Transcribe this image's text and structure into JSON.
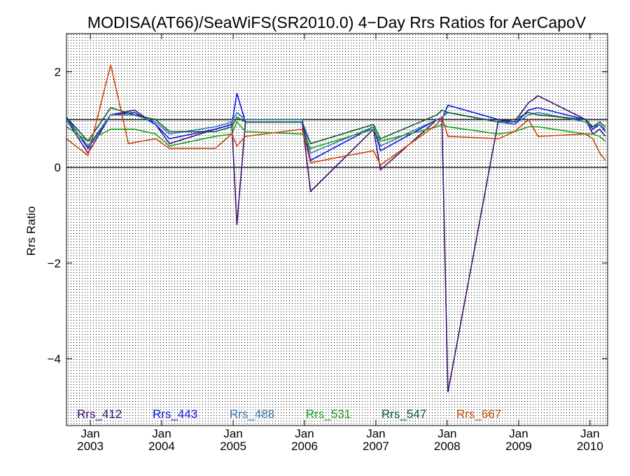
{
  "chart_data": {
    "type": "line",
    "title": "MODISA(AT66)/SeaWiFS(SR2010.0) 4−Day Rrs Ratios for AerCapoV",
    "xlabel": "",
    "ylabel": "Rrs Ratio",
    "x_axis": {
      "kind": "date",
      "range": [
        "2002-09-01",
        "2010-04-01"
      ],
      "ticks": [
        {
          "date": "2003-01-01",
          "line1": "Jan",
          "line2": "2003"
        },
        {
          "date": "2004-01-01",
          "line1": "Jan",
          "line2": "2004"
        },
        {
          "date": "2005-01-01",
          "line1": "Jan",
          "line2": "2005"
        },
        {
          "date": "2006-01-01",
          "line1": "Jan",
          "line2": "2006"
        },
        {
          "date": "2007-01-01",
          "line1": "Jan",
          "line2": "2007"
        },
        {
          "date": "2008-01-01",
          "line1": "Jan",
          "line2": "2008"
        },
        {
          "date": "2009-01-01",
          "line1": "Jan",
          "line2": "2009"
        },
        {
          "date": "2010-01-01",
          "line1": "Jan",
          "line2": "2010"
        }
      ]
    },
    "y_axis": {
      "range": [
        -5.4,
        2.8
      ],
      "ticks": [
        {
          "value": 2,
          "label": "2"
        },
        {
          "value": 0,
          "label": "0"
        },
        {
          "value": -2,
          "label": "−2"
        },
        {
          "value": -4,
          "label": "−4"
        }
      ]
    },
    "reference_lines": [
      0,
      1
    ],
    "grid": "dotted",
    "legend_placement": "bottom inside plot",
    "series": [
      {
        "name": "Rrs_412",
        "color": "#3c0d70",
        "points": [
          [
            "2002-09-01",
            1.0
          ],
          [
            "2002-12-20",
            0.3
          ],
          [
            "2003-04-15",
            1.1
          ],
          [
            "2003-08-15",
            1.2
          ],
          [
            "2003-12-01",
            0.9
          ],
          [
            "2004-02-10",
            0.5
          ],
          [
            "2004-10-01",
            0.8
          ],
          [
            "2004-12-25",
            0.9
          ],
          [
            "2005-01-20",
            -1.2
          ],
          [
            "2005-03-05",
            0.95
          ],
          [
            "2005-12-20",
            0.95
          ],
          [
            "2006-02-01",
            -0.5
          ],
          [
            "2006-12-20",
            0.8
          ],
          [
            "2007-01-25",
            -0.05
          ],
          [
            "2007-11-10",
            1.0
          ],
          [
            "2007-12-05",
            1.0
          ],
          [
            "2008-01-05",
            -4.7
          ],
          [
            "2008-09-20",
            1.0
          ],
          [
            "2008-12-10",
            0.95
          ],
          [
            "2009-02-20",
            1.35
          ],
          [
            "2009-04-10",
            1.5
          ],
          [
            "2009-12-10",
            1.0
          ],
          [
            "2010-01-15",
            0.7
          ],
          [
            "2010-02-20",
            0.8
          ],
          [
            "2010-03-20",
            0.65
          ]
        ]
      },
      {
        "name": "Rrs_443",
        "color": "#0a14e6",
        "points": [
          [
            "2002-09-01",
            1.05
          ],
          [
            "2002-12-20",
            0.4
          ],
          [
            "2003-04-15",
            1.1
          ],
          [
            "2003-08-15",
            1.15
          ],
          [
            "2003-12-01",
            0.9
          ],
          [
            "2004-02-10",
            0.6
          ],
          [
            "2004-10-01",
            0.8
          ],
          [
            "2004-12-25",
            0.9
          ],
          [
            "2005-01-20",
            1.55
          ],
          [
            "2005-03-05",
            0.95
          ],
          [
            "2005-12-20",
            0.95
          ],
          [
            "2006-02-01",
            0.15
          ],
          [
            "2006-12-20",
            0.85
          ],
          [
            "2007-01-25",
            0.35
          ],
          [
            "2007-11-10",
            1.0
          ],
          [
            "2007-12-05",
            1.0
          ],
          [
            "2008-01-05",
            1.3
          ],
          [
            "2008-09-20",
            1.0
          ],
          [
            "2008-12-10",
            0.9
          ],
          [
            "2009-02-20",
            1.2
          ],
          [
            "2009-04-10",
            1.25
          ],
          [
            "2009-12-10",
            1.0
          ],
          [
            "2010-01-15",
            0.8
          ],
          [
            "2010-02-20",
            0.9
          ],
          [
            "2010-03-20",
            0.75
          ]
        ]
      },
      {
        "name": "Rrs_488",
        "color": "#3a7ab0",
        "points": [
          [
            "2002-09-01",
            1.0
          ],
          [
            "2002-12-20",
            0.45
          ],
          [
            "2003-04-15",
            1.1
          ],
          [
            "2003-08-15",
            1.1
          ],
          [
            "2003-12-01",
            0.95
          ],
          [
            "2004-02-10",
            0.7
          ],
          [
            "2004-10-01",
            0.85
          ],
          [
            "2004-12-25",
            0.95
          ],
          [
            "2005-01-20",
            1.15
          ],
          [
            "2005-03-05",
            1.0
          ],
          [
            "2005-12-20",
            1.0
          ],
          [
            "2006-02-01",
            0.3
          ],
          [
            "2006-12-20",
            0.85
          ],
          [
            "2007-01-25",
            0.45
          ],
          [
            "2007-11-10",
            1.0
          ],
          [
            "2007-12-05",
            1.05
          ],
          [
            "2008-01-05",
            1.15
          ],
          [
            "2008-09-20",
            0.95
          ],
          [
            "2008-12-10",
            0.9
          ],
          [
            "2009-02-20",
            1.1
          ],
          [
            "2009-04-10",
            1.15
          ],
          [
            "2009-12-10",
            0.95
          ],
          [
            "2010-01-15",
            0.85
          ],
          [
            "2010-02-20",
            0.9
          ],
          [
            "2010-03-20",
            0.8
          ]
        ]
      },
      {
        "name": "Rrs_531",
        "color": "#1aa01a",
        "points": [
          [
            "2002-09-01",
            0.85
          ],
          [
            "2002-12-20",
            0.55
          ],
          [
            "2003-04-15",
            0.8
          ],
          [
            "2003-08-15",
            0.8
          ],
          [
            "2003-12-01",
            0.7
          ],
          [
            "2004-02-10",
            0.45
          ],
          [
            "2004-10-01",
            0.65
          ],
          [
            "2004-12-25",
            0.7
          ],
          [
            "2005-01-20",
            0.95
          ],
          [
            "2005-03-05",
            0.75
          ],
          [
            "2005-12-20",
            0.7
          ],
          [
            "2006-02-01",
            0.4
          ],
          [
            "2006-12-20",
            0.8
          ],
          [
            "2007-01-25",
            0.55
          ],
          [
            "2007-11-10",
            0.85
          ],
          [
            "2007-12-05",
            0.9
          ],
          [
            "2008-01-05",
            0.85
          ],
          [
            "2008-09-20",
            0.7
          ],
          [
            "2008-12-10",
            0.75
          ],
          [
            "2009-02-20",
            0.85
          ],
          [
            "2009-04-10",
            0.85
          ],
          [
            "2009-12-10",
            0.7
          ],
          [
            "2010-01-15",
            0.7
          ],
          [
            "2010-02-20",
            0.65
          ],
          [
            "2010-03-20",
            0.55
          ]
        ]
      },
      {
        "name": "Rrs_547",
        "color": "#0c5a2e",
        "points": [
          [
            "2002-09-01",
            1.05
          ],
          [
            "2002-12-20",
            0.55
          ],
          [
            "2003-04-15",
            1.25
          ],
          [
            "2003-08-15",
            1.1
          ],
          [
            "2003-12-01",
            1.0
          ],
          [
            "2004-02-10",
            0.75
          ],
          [
            "2004-10-01",
            0.75
          ],
          [
            "2004-12-25",
            0.85
          ],
          [
            "2005-01-20",
            1.05
          ],
          [
            "2005-03-05",
            0.95
          ],
          [
            "2005-12-20",
            0.95
          ],
          [
            "2006-02-01",
            0.5
          ],
          [
            "2006-12-20",
            0.9
          ],
          [
            "2007-01-25",
            0.6
          ],
          [
            "2007-11-10",
            1.1
          ],
          [
            "2007-12-05",
            1.2
          ],
          [
            "2008-01-05",
            1.15
          ],
          [
            "2008-09-20",
            0.95
          ],
          [
            "2008-12-10",
            1.0
          ],
          [
            "2009-02-20",
            1.15
          ],
          [
            "2009-04-10",
            1.1
          ],
          [
            "2009-12-10",
            1.0
          ],
          [
            "2010-01-15",
            0.85
          ],
          [
            "2010-02-20",
            0.95
          ],
          [
            "2010-03-20",
            0.85
          ]
        ]
      },
      {
        "name": "Rrs_667",
        "color": "#c84a0c",
        "points": [
          [
            "2002-09-01",
            0.6
          ],
          [
            "2002-12-20",
            0.25
          ],
          [
            "2003-04-15",
            2.15
          ],
          [
            "2003-07-15",
            0.5
          ],
          [
            "2003-12-01",
            0.6
          ],
          [
            "2004-02-10",
            0.4
          ],
          [
            "2004-10-01",
            0.4
          ],
          [
            "2004-12-25",
            0.7
          ],
          [
            "2005-01-20",
            0.45
          ],
          [
            "2005-03-05",
            0.65
          ],
          [
            "2005-12-20",
            0.8
          ],
          [
            "2006-02-01",
            0.1
          ],
          [
            "2006-12-20",
            0.35
          ],
          [
            "2007-01-25",
            0.05
          ],
          [
            "2007-11-10",
            0.9
          ],
          [
            "2007-12-05",
            1.05
          ],
          [
            "2008-01-05",
            0.65
          ],
          [
            "2008-09-20",
            0.6
          ],
          [
            "2008-12-10",
            0.75
          ],
          [
            "2009-02-20",
            1.0
          ],
          [
            "2009-04-10",
            0.65
          ],
          [
            "2009-12-10",
            0.7
          ],
          [
            "2010-01-15",
            0.6
          ],
          [
            "2010-02-20",
            0.3
          ],
          [
            "2010-03-20",
            0.15
          ]
        ]
      }
    ]
  }
}
